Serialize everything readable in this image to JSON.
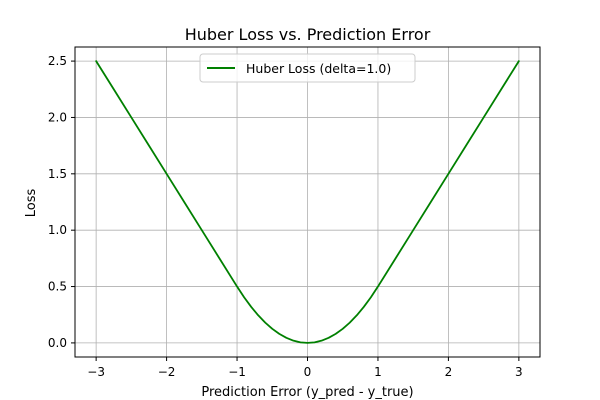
{
  "chart_data": {
    "type": "line",
    "title": "Huber Loss vs. Prediction Error",
    "xlabel": "Prediction Error (y_pred - y_true)",
    "ylabel": "Loss",
    "xlim": [
      -3.3,
      3.3
    ],
    "ylim": [
      -0.125,
      2.625
    ],
    "x_ticks": [
      -3,
      -2,
      -1,
      0,
      1,
      2,
      3
    ],
    "x_tick_labels": [
      "−3",
      "−2",
      "−1",
      "0",
      "1",
      "2",
      "3"
    ],
    "y_ticks": [
      0.0,
      0.5,
      1.0,
      1.5,
      2.0,
      2.5
    ],
    "y_tick_labels": [
      "0.0",
      "0.5",
      "1.0",
      "1.5",
      "2.0",
      "2.5"
    ],
    "grid": true,
    "legend_position": "top-center",
    "series": [
      {
        "name": "Huber Loss (delta=1.0)",
        "color": "#008000",
        "x": [
          -3.0,
          -2.75,
          -2.5,
          -2.25,
          -2.0,
          -1.75,
          -1.5,
          -1.25,
          -1.0,
          -0.9,
          -0.8,
          -0.7,
          -0.6,
          -0.5,
          -0.4,
          -0.3,
          -0.2,
          -0.1,
          0.0,
          0.1,
          0.2,
          0.3,
          0.4,
          0.5,
          0.6,
          0.7,
          0.8,
          0.9,
          1.0,
          1.25,
          1.5,
          1.75,
          2.0,
          2.25,
          2.5,
          2.75,
          3.0
        ],
        "y": [
          2.5,
          2.25,
          2.0,
          1.75,
          1.5,
          1.25,
          1.0,
          0.75,
          0.5,
          0.405,
          0.32,
          0.245,
          0.18,
          0.125,
          0.08,
          0.045,
          0.02,
          0.005,
          0.0,
          0.005,
          0.02,
          0.045,
          0.08,
          0.125,
          0.18,
          0.245,
          0.32,
          0.405,
          0.5,
          0.75,
          1.0,
          1.25,
          1.5,
          1.75,
          2.0,
          2.25,
          2.5
        ]
      }
    ]
  }
}
